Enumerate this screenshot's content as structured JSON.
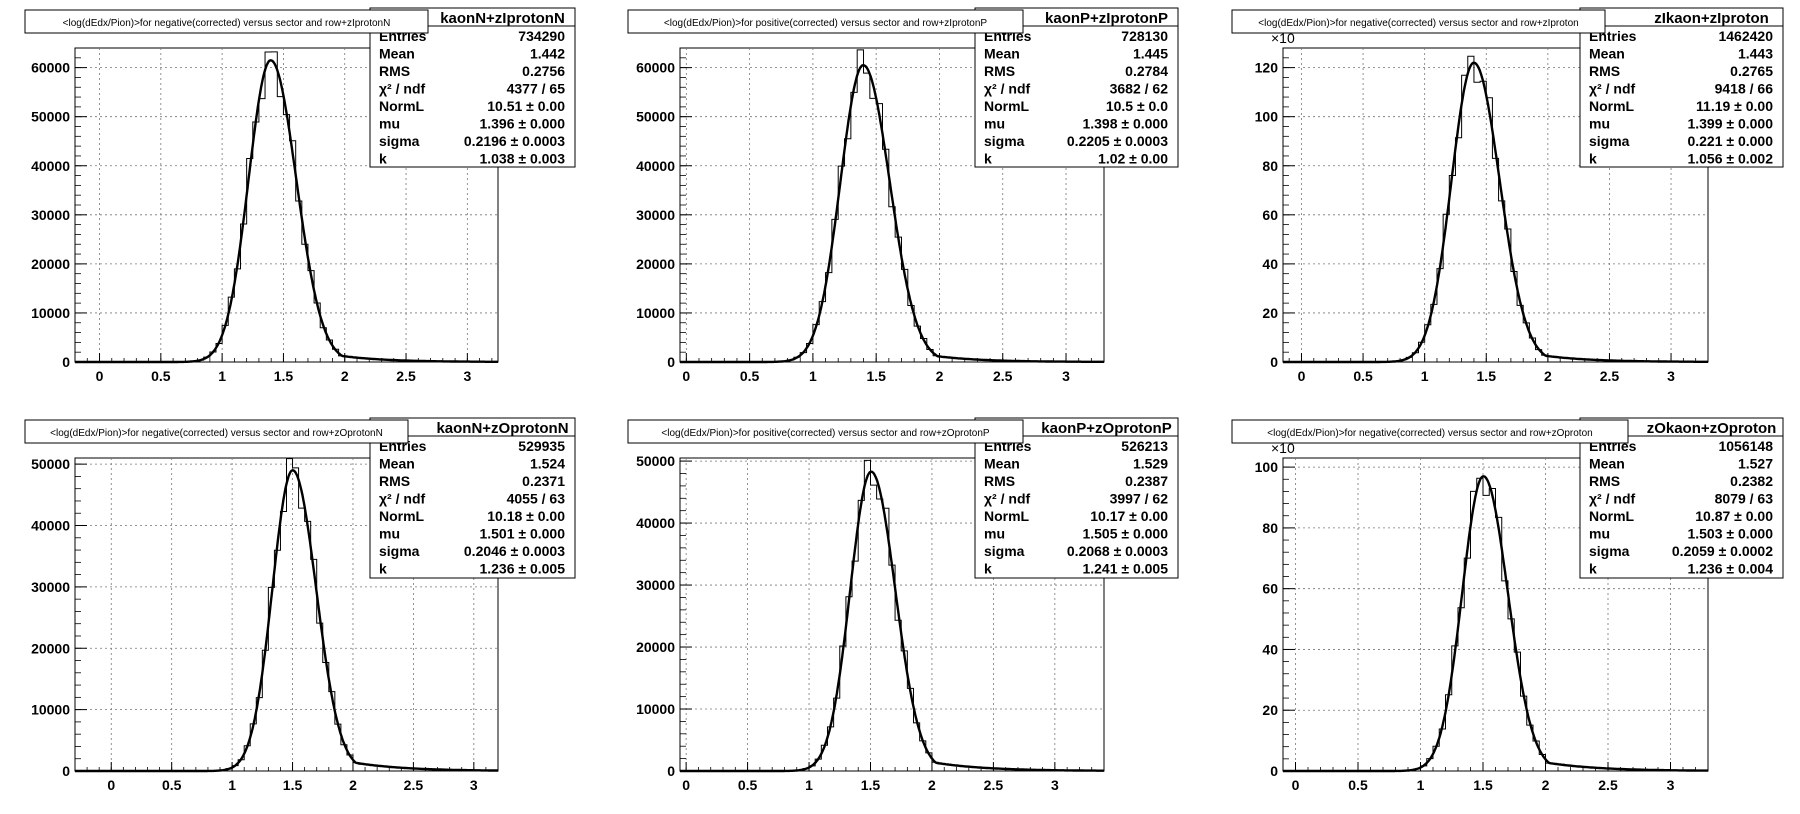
{
  "chart_data": [
    {
      "type": "histogram",
      "title": "<log(dEdx/Pion)>for negative(corrected) versus sector and row+zIprotonN",
      "stats_name": "kaonN+zIprotonN",
      "stats": [
        {
          "label": "Entries",
          "value": "734290"
        },
        {
          "label": "Mean",
          "value": "1.442"
        },
        {
          "label": "RMS",
          "value": "0.2756"
        },
        {
          "label": "χ² / ndf",
          "value": "4377 / 65"
        },
        {
          "label": "NormL",
          "value": "10.51 ± 0.00"
        },
        {
          "label": "mu",
          "value": "1.396 ± 0.000"
        },
        {
          "label": "sigma",
          "value": "0.2196 ± 0.0003"
        },
        {
          "label": "k",
          "value": "1.038 ± 0.003"
        }
      ],
      "x_ticks": [
        "0",
        "0.5",
        "1",
        "1.5",
        "2",
        "2.5",
        "3"
      ],
      "xlim": [
        -0.2,
        3.25
      ],
      "y_ticks": [
        "0",
        "10000",
        "20000",
        "30000",
        "40000",
        "50000",
        "60000"
      ],
      "ylim": [
        0,
        64000
      ],
      "y_multiplier": "",
      "peak": 61500,
      "mu": 1.396,
      "sigma": 0.2196,
      "k": 1.038,
      "grid": true
    },
    {
      "type": "histogram",
      "title": "<log(dEdx/Pion)>for positive(corrected) versus sector and row+zIprotonP",
      "stats_name": "kaonP+zIprotonP",
      "stats": [
        {
          "label": "Entries",
          "value": "728130"
        },
        {
          "label": "Mean",
          "value": "1.445"
        },
        {
          "label": "RMS",
          "value": "0.2784"
        },
        {
          "label": "χ² / ndf",
          "value": "3682 / 62"
        },
        {
          "label": "NormL",
          "value": "10.5 ± 0.0"
        },
        {
          "label": "mu",
          "value": "1.398 ± 0.000"
        },
        {
          "label": "sigma",
          "value": "0.2205 ± 0.0003"
        },
        {
          "label": "k",
          "value": "1.02 ± 0.00"
        }
      ],
      "x_ticks": [
        "0",
        "0.5",
        "1",
        "1.5",
        "2",
        "2.5",
        "3"
      ],
      "xlim": [
        -0.05,
        3.3
      ],
      "y_ticks": [
        "0",
        "10000",
        "20000",
        "30000",
        "40000",
        "50000",
        "60000"
      ],
      "ylim": [
        0,
        64000
      ],
      "y_multiplier": "",
      "peak": 60500,
      "mu": 1.398,
      "sigma": 0.2205,
      "k": 1.02,
      "grid": true
    },
    {
      "type": "histogram",
      "title": "<log(dEdx/Pion)>for negative(corrected) versus sector and row+zIproton",
      "stats_name": "zIkaon+zIproton",
      "stats": [
        {
          "label": "Entries",
          "value": "1462420"
        },
        {
          "label": "Mean",
          "value": "1.443"
        },
        {
          "label": "RMS",
          "value": "0.2765"
        },
        {
          "label": "χ² / ndf",
          "value": "9418 / 66"
        },
        {
          "label": "NormL",
          "value": "11.19 ± 0.00"
        },
        {
          "label": "mu",
          "value": "1.399 ± 0.000"
        },
        {
          "label": "sigma",
          "value": "0.221 ± 0.000"
        },
        {
          "label": "k",
          "value": "1.056 ± 0.002"
        }
      ],
      "x_ticks": [
        "0",
        "0.5",
        "1",
        "1.5",
        "2",
        "2.5",
        "3"
      ],
      "xlim": [
        -0.15,
        3.3
      ],
      "y_ticks": [
        "0",
        "20",
        "40",
        "60",
        "80",
        "100",
        "120"
      ],
      "ylim": [
        0,
        128
      ],
      "y_multiplier": "×10",
      "peak": 122,
      "mu": 1.399,
      "sigma": 0.221,
      "k": 1.056,
      "grid": true
    },
    {
      "type": "histogram",
      "title": "<log(dEdx/Pion)>for negative(corrected) versus sector and row+zOprotonN",
      "stats_name": "kaonN+zOprotonN",
      "stats": [
        {
          "label": "Entries",
          "value": "529935"
        },
        {
          "label": "Mean",
          "value": "1.524"
        },
        {
          "label": "RMS",
          "value": "0.2371"
        },
        {
          "label": "χ² / ndf",
          "value": "4055 / 63"
        },
        {
          "label": "NormL",
          "value": "10.18 ± 0.00"
        },
        {
          "label": "mu",
          "value": "1.501 ± 0.000"
        },
        {
          "label": "sigma",
          "value": "0.2046 ± 0.0003"
        },
        {
          "label": "k",
          "value": "1.236 ± 0.005"
        }
      ],
      "x_ticks": [
        "0",
        "0.5",
        "1",
        "1.5",
        "2",
        "2.5",
        "3"
      ],
      "xlim": [
        -0.3,
        3.2
      ],
      "y_ticks": [
        "0",
        "10000",
        "20000",
        "30000",
        "40000",
        "50000"
      ],
      "ylim": [
        0,
        51000
      ],
      "y_multiplier": "",
      "peak": 49000,
      "mu": 1.501,
      "sigma": 0.2046,
      "k": 1.236,
      "grid": true
    },
    {
      "type": "histogram",
      "title": "<log(dEdx/Pion)>for positive(corrected) versus sector and row+zOprotonP",
      "stats_name": "kaonP+zOprotonP",
      "stats": [
        {
          "label": "Entries",
          "value": "526213"
        },
        {
          "label": "Mean",
          "value": "1.529"
        },
        {
          "label": "RMS",
          "value": "0.2387"
        },
        {
          "label": "χ² / ndf",
          "value": "3997 / 62"
        },
        {
          "label": "NormL",
          "value": "10.17 ± 0.00"
        },
        {
          "label": "mu",
          "value": "1.505 ± 0.000"
        },
        {
          "label": "sigma",
          "value": "0.2068 ± 0.0003"
        },
        {
          "label": "k",
          "value": "1.241 ± 0.005"
        }
      ],
      "x_ticks": [
        "0",
        "0.5",
        "1",
        "1.5",
        "2",
        "2.5",
        "3"
      ],
      "xlim": [
        -0.05,
        3.4
      ],
      "y_ticks": [
        "0",
        "10000",
        "20000",
        "30000",
        "40000",
        "50000"
      ],
      "ylim": [
        0,
        50500
      ],
      "y_multiplier": "",
      "peak": 48300,
      "mu": 1.505,
      "sigma": 0.2068,
      "k": 1.241,
      "grid": true
    },
    {
      "type": "histogram",
      "title": "<log(dEdx/Pion)>for negative(corrected) versus sector and row+zOproton",
      "stats_name": "zOkaon+zOproton",
      "stats": [
        {
          "label": "Entries",
          "value": "1056148"
        },
        {
          "label": "Mean",
          "value": "1.527"
        },
        {
          "label": "RMS",
          "value": "0.2382"
        },
        {
          "label": "χ² / ndf",
          "value": "8079 / 63"
        },
        {
          "label": "NormL",
          "value": "10.87 ± 0.00"
        },
        {
          "label": "mu",
          "value": "1.503 ± 0.000"
        },
        {
          "label": "sigma",
          "value": "0.2059 ± 0.0002"
        },
        {
          "label": "k",
          "value": "1.236 ± 0.004"
        }
      ],
      "x_ticks": [
        "0",
        "0.5",
        "1",
        "1.5",
        "2",
        "2.5",
        "3"
      ],
      "xlim": [
        -0.1,
        3.3
      ],
      "y_ticks": [
        "0",
        "20",
        "40",
        "60",
        "80",
        "100"
      ],
      "ylim": [
        0,
        103
      ],
      "y_multiplier": "×10",
      "peak": 97,
      "mu": 1.503,
      "sigma": 0.2059,
      "k": 1.236,
      "grid": true
    }
  ]
}
